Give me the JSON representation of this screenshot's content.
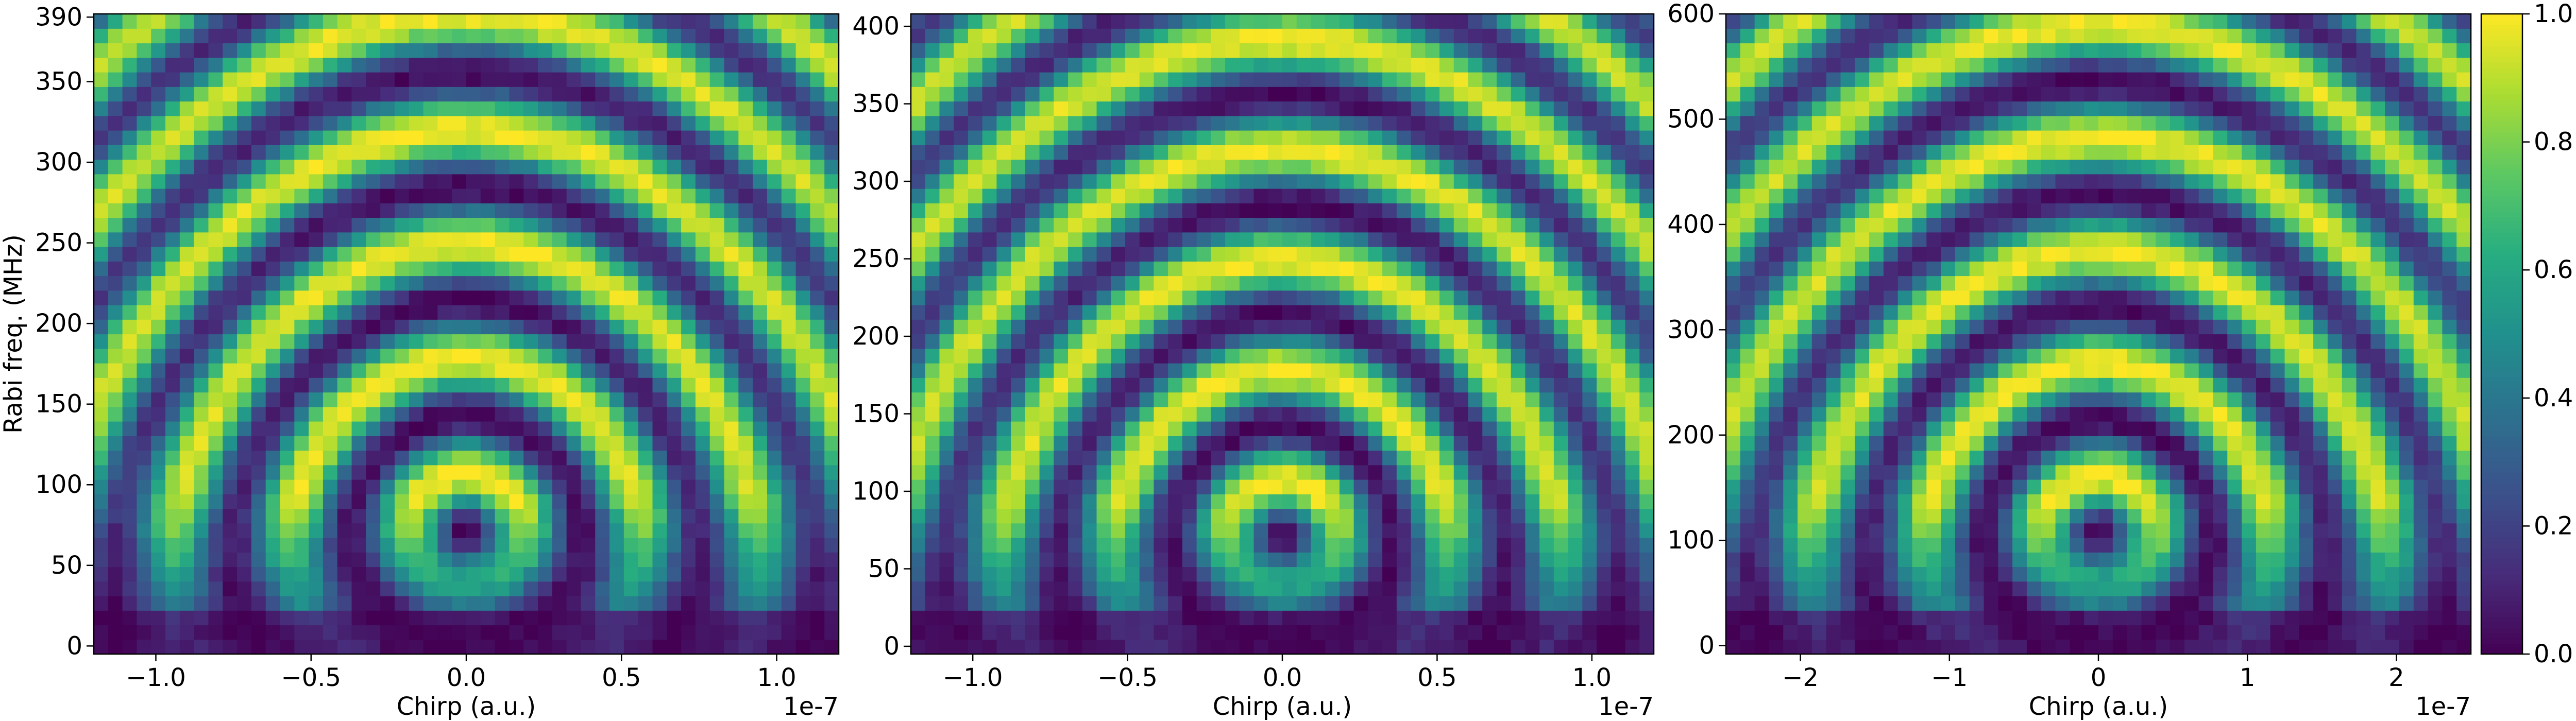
{
  "chart_data": [
    {
      "type": "heatmap",
      "xlabel": "Chirp (a.u.)",
      "ylabel": "Rabi freq. (MHz)",
      "x_offset_text": "1e-7",
      "xlim": [
        -1.2,
        1.2
      ],
      "ylim": [
        -5,
        392
      ],
      "xticks": [
        -1.0,
        -0.5,
        0.0,
        0.5,
        1.0
      ],
      "xtick_labels": [
        "−1.0",
        "−0.5",
        "0.0",
        "0.5",
        "1.0"
      ],
      "yticks": [
        0,
        50,
        100,
        150,
        200,
        250,
        300,
        350,
        390
      ],
      "ytick_labels": [
        "0",
        "50",
        "100",
        "150",
        "200",
        "250",
        "300",
        "350",
        "390"
      ],
      "grid": false,
      "colormap": "viridis",
      "value_range": [
        0.0,
        1.0
      ],
      "pattern": {
        "ring_center": [
          0.0,
          72
        ],
        "ring_radius": 44,
        "dark_spots_y": [
          72,
          143,
          213,
          283,
          352
        ]
      }
    },
    {
      "type": "heatmap",
      "xlabel": "Chirp (a.u.)",
      "ylabel": "",
      "x_offset_text": "1e-7",
      "xlim": [
        -1.2,
        1.2
      ],
      "ylim": [
        -5,
        408
      ],
      "xticks": [
        -1.0,
        -0.5,
        0.0,
        0.5,
        1.0
      ],
      "xtick_labels": [
        "−1.0",
        "−0.5",
        "0.0",
        "0.5",
        "1.0"
      ],
      "yticks": [
        0,
        50,
        100,
        150,
        200,
        250,
        300,
        350,
        400
      ],
      "ytick_labels": [
        "0",
        "50",
        "100",
        "150",
        "200",
        "250",
        "300",
        "350",
        "400"
      ],
      "grid": false,
      "colormap": "viridis",
      "value_range": [
        0.0,
        1.0
      ],
      "pattern": {
        "ring_center": [
          0.0,
          72
        ],
        "ring_radius": 44,
        "dark_spots_y": [
          72,
          143,
          213,
          283,
          352
        ]
      }
    },
    {
      "type": "heatmap",
      "xlabel": "Chirp (a.u.)",
      "ylabel": "",
      "x_offset_text": "1e-7",
      "xlim": [
        -2.5,
        2.5
      ],
      "ylim": [
        -8,
        600
      ],
      "xticks": [
        -2,
        -1,
        0,
        1,
        2
      ],
      "xtick_labels": [
        "−2",
        "−1",
        "0",
        "1",
        "2"
      ],
      "yticks": [
        0,
        100,
        200,
        300,
        400,
        500,
        600
      ],
      "ytick_labels": [
        "0",
        "100",
        "200",
        "300",
        "400",
        "500",
        "600"
      ],
      "grid": false,
      "colormap": "viridis",
      "value_range": [
        0.0,
        1.0
      ],
      "pattern": {
        "ring_center": [
          0.0,
          108
        ],
        "ring_radius": 66,
        "dark_spots_y": [
          108,
          215,
          322,
          428,
          535
        ]
      }
    }
  ],
  "colorbar": {
    "ticks": [
      0.0,
      0.2,
      0.4,
      0.6,
      0.8,
      1.0
    ],
    "tick_labels": [
      "0.0",
      "0.2",
      "0.4",
      "0.6",
      "0.8",
      "1.0"
    ]
  }
}
